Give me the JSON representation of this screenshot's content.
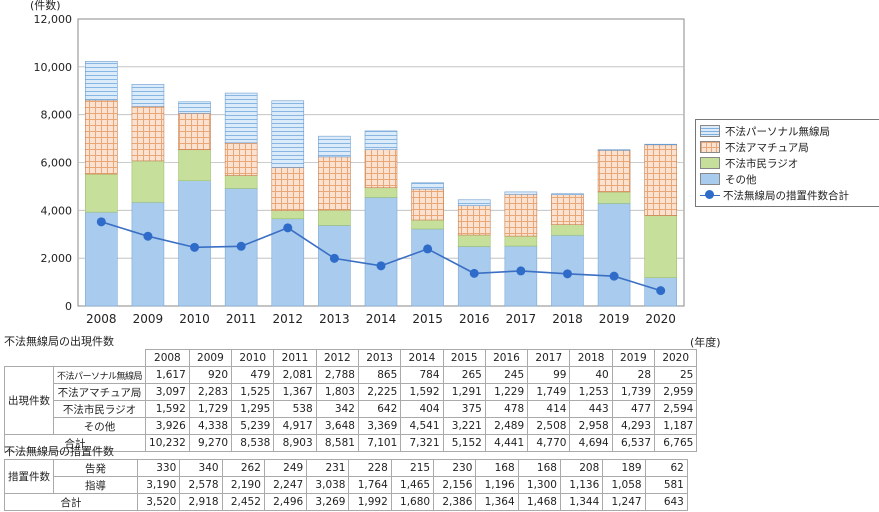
{
  "chart_data": {
    "type": "bar",
    "unit_label": "(件数)",
    "ylim": [
      0,
      12000
    ],
    "y_ticks": [
      "12,000",
      "10,000",
      "8,000",
      "6,000",
      "4,000",
      "2,000",
      "0"
    ],
    "categories": [
      "2008",
      "2009",
      "2010",
      "2011",
      "2012",
      "2013",
      "2014",
      "2015",
      "2016",
      "2017",
      "2018",
      "2019",
      "2020"
    ],
    "series": [
      {
        "name": "その他",
        "color": "#a9cbee",
        "values": [
          3926,
          4338,
          5239,
          4917,
          3648,
          3369,
          4541,
          3221,
          2489,
          2508,
          2958,
          4293,
          1187
        ]
      },
      {
        "name": "不法市民ラジオ",
        "color": "#c6e09c",
        "values": [
          1592,
          1729,
          1295,
          538,
          342,
          642,
          404,
          375,
          478,
          414,
          443,
          477,
          2594
        ]
      },
      {
        "name": "不法アマチュア局",
        "color": "#f6c9a6",
        "values": [
          3097,
          2283,
          1525,
          1367,
          1803,
          2225,
          1592,
          1291,
          1229,
          1749,
          1253,
          1739,
          2959
        ]
      },
      {
        "name": "不法パーソナル無線局",
        "color": "#cfe3f7",
        "values": [
          1617,
          920,
          479,
          2081,
          2788,
          865,
          784,
          265,
          245,
          99,
          40,
          28,
          25
        ]
      }
    ],
    "line_series": {
      "name": "不法無線局の措置件数合計",
      "color": "#2f6bc9",
      "values": [
        3520,
        2918,
        2452,
        2496,
        3269,
        1992,
        1680,
        2386,
        1364,
        1468,
        1344,
        1247,
        643
      ]
    },
    "legend_order": [
      "不法パーソナル無線局",
      "不法アマチュア局",
      "不法市民ラジオ",
      "その他",
      "不法無線局の措置件数合計"
    ]
  },
  "table": {
    "title1": "不法無線局の出現件数",
    "years": [
      "2008",
      "2009",
      "2010",
      "2011",
      "2012",
      "2013",
      "2014",
      "2015",
      "2016",
      "2017",
      "2018",
      "2019",
      "2020"
    ],
    "year_unit": "(年度)",
    "group1": "出現件数",
    "rows1": [
      {
        "label": "不法パーソナル無線局",
        "values": [
          "1,617",
          "920",
          "479",
          "2,081",
          "2,788",
          "865",
          "784",
          "265",
          "245",
          "99",
          "40",
          "28",
          "25"
        ]
      },
      {
        "label": "不法アマチュア局",
        "values": [
          "3,097",
          "2,283",
          "1,525",
          "1,367",
          "1,803",
          "2,225",
          "1,592",
          "1,291",
          "1,229",
          "1,749",
          "1,253",
          "1,739",
          "2,959"
        ]
      },
      {
        "label": "不法市民ラジオ",
        "values": [
          "1,592",
          "1,729",
          "1,295",
          "538",
          "342",
          "642",
          "404",
          "375",
          "478",
          "414",
          "443",
          "477",
          "2,594"
        ]
      },
      {
        "label": "その他",
        "values": [
          "3,926",
          "4,338",
          "5,239",
          "4,917",
          "3,648",
          "3,369",
          "4,541",
          "3,221",
          "2,489",
          "2,508",
          "2,958",
          "4,293",
          "1,187"
        ]
      },
      {
        "label": "合計",
        "values": [
          "10,232",
          "9,270",
          "8,538",
          "8,903",
          "8,581",
          "7,101",
          "7,321",
          "5,152",
          "4,441",
          "4,770",
          "4,694",
          "6,537",
          "6,765"
        ]
      }
    ],
    "title2": "不法無線局の措置件数",
    "group2": "措置件数",
    "rows2": [
      {
        "label": "告発",
        "values": [
          "330",
          "340",
          "262",
          "249",
          "231",
          "228",
          "215",
          "230",
          "168",
          "168",
          "208",
          "189",
          "62"
        ]
      },
      {
        "label": "指導",
        "values": [
          "3,190",
          "2,578",
          "2,190",
          "2,247",
          "3,038",
          "1,764",
          "1,465",
          "2,156",
          "1,196",
          "1,300",
          "1,136",
          "1,058",
          "581"
        ]
      },
      {
        "label": "合計",
        "values": [
          "3,520",
          "2,918",
          "2,452",
          "2,496",
          "3,269",
          "1,992",
          "1,680",
          "2,386",
          "1,364",
          "1,468",
          "1,344",
          "1,247",
          "643"
        ]
      }
    ]
  }
}
